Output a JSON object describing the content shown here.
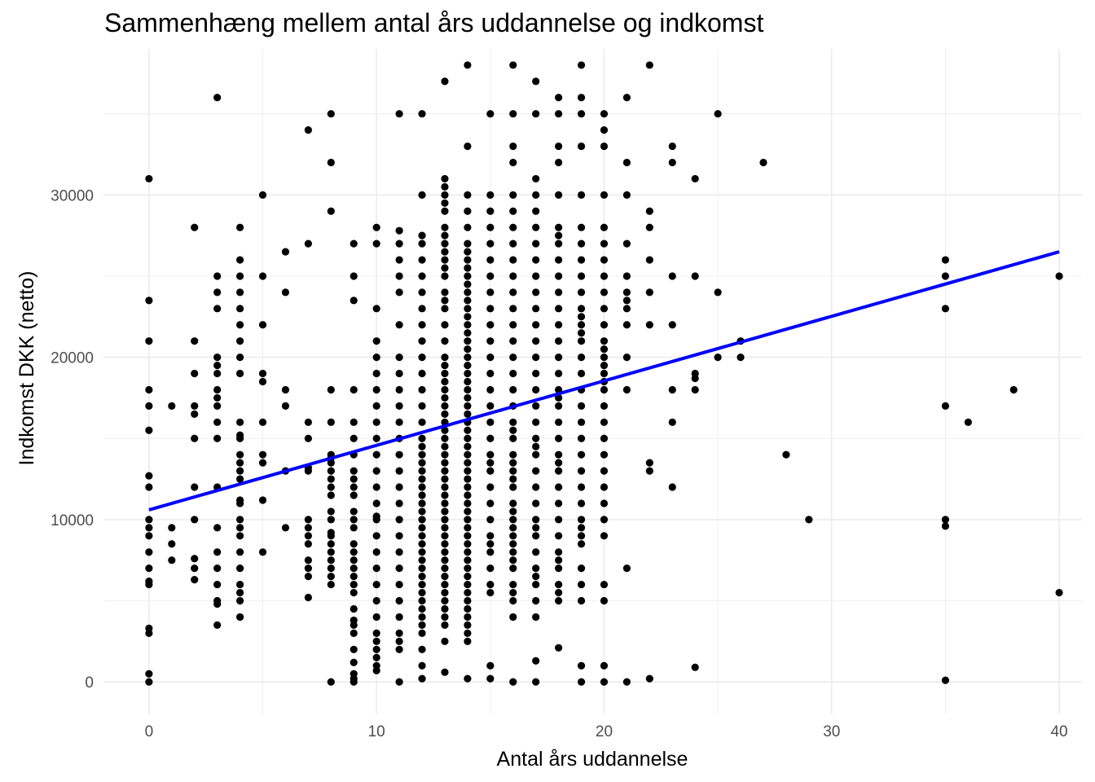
{
  "chart_data": {
    "type": "scatter",
    "title": "Sammenhæng mellem antal års uddannelse og indkomst",
    "xlabel": "Antal års uddannelse",
    "ylabel": "Indkomst DKK (netto)",
    "xlim": [
      -2,
      41
    ],
    "ylim": [
      -2000,
      39000
    ],
    "xticks": [
      0,
      10,
      20,
      30,
      40
    ],
    "xtick_labels": [
      "0",
      "10",
      "20",
      "30",
      "40"
    ],
    "yticks": [
      0,
      10000,
      20000,
      30000
    ],
    "ytick_labels": [
      "0",
      "10000",
      "20000",
      "30000"
    ],
    "grid": true,
    "legend": "none",
    "colors": {
      "points": "#000000",
      "trend": "#0000ff",
      "grid": "#ebebeb",
      "tick_text": "#4d4d4d"
    },
    "trend_line": {
      "x": [
        0,
        40
      ],
      "y": [
        10600,
        26500
      ]
    },
    "points_by_x": [
      {
        "x": 0,
        "y": [
          31000,
          23500,
          21000,
          18000,
          17000,
          15500,
          12700,
          12000,
          10000,
          9500,
          9000,
          8000,
          7000,
          6200,
          6000,
          3300,
          3000,
          500,
          0
        ]
      },
      {
        "x": 1,
        "y": [
          17000,
          9500,
          8500,
          7500
        ]
      },
      {
        "x": 2,
        "y": [
          28000,
          21000,
          19000,
          17000,
          16500,
          15000,
          12000,
          10000,
          7600,
          7000,
          6300
        ]
      },
      {
        "x": 3,
        "y": [
          36000,
          25000,
          24000,
          23000,
          20000,
          19500,
          19000,
          18000,
          17500,
          17000,
          16000,
          15000,
          12000,
          9500,
          8000,
          7000,
          6000,
          5000,
          4800,
          3500
        ]
      },
      {
        "x": 4,
        "y": [
          28000,
          26000,
          25000,
          24000,
          23000,
          22000,
          21000,
          20000,
          19000,
          16000,
          15200,
          15000,
          14000,
          13500,
          13000,
          12500,
          11200,
          11000,
          10000,
          9500,
          9000,
          8000,
          7000,
          6000,
          5500,
          5000,
          4000
        ]
      },
      {
        "x": 5,
        "y": [
          30000,
          25000,
          22000,
          19000,
          18500,
          16000,
          14000,
          13500,
          11200,
          8000
        ]
      },
      {
        "x": 6,
        "y": [
          26500,
          24000,
          18000,
          17000,
          13000,
          9500
        ]
      },
      {
        "x": 7,
        "y": [
          34000,
          27000,
          16000,
          15000,
          13200,
          13000,
          10000,
          9500,
          9000,
          8500,
          7500,
          7000,
          6500,
          5200
        ]
      },
      {
        "x": 8,
        "y": [
          35000,
          32000,
          29000,
          18000,
          16000,
          14000,
          13800,
          13500,
          13000,
          12500,
          12000,
          11500,
          10500,
          10000,
          9200,
          9000,
          8500,
          8000,
          7500,
          7000,
          6500,
          6000,
          0
        ]
      },
      {
        "x": 9,
        "y": [
          27000,
          25000,
          23500,
          18000,
          16000,
          15000,
          14000,
          13000,
          12500,
          12000,
          11500,
          10500,
          10000,
          9500,
          8500,
          8000,
          7500,
          7000,
          6500,
          6000,
          5500,
          4500,
          3800,
          3500,
          3000,
          2000,
          1200,
          500,
          200,
          0
        ]
      },
      {
        "x": 10,
        "y": [
          28000,
          27000,
          23000,
          21000,
          20000,
          19000,
          18000,
          17000,
          16000,
          15000,
          14000,
          13000,
          12000,
          11000,
          10200,
          10000,
          9000,
          8000,
          7000,
          6000,
          5000,
          4000,
          3000,
          2500,
          2000,
          1500,
          1000,
          700
        ]
      },
      {
        "x": 11,
        "y": [
          35000,
          27800,
          27000,
          26000,
          25000,
          24000,
          22000,
          20000,
          19000,
          18000,
          17000,
          16000,
          15000,
          14000,
          13000,
          12000,
          11000,
          10000,
          9000,
          8000,
          7000,
          6000,
          5000,
          4000,
          3000,
          2500,
          2000,
          0
        ]
      },
      {
        "x": 12,
        "y": [
          35000,
          30000,
          27500,
          27000,
          26000,
          25000,
          24000,
          23000,
          22000,
          21000,
          20000,
          19000,
          18000,
          17000,
          16000,
          15000,
          14500,
          14000,
          13500,
          13000,
          12500,
          12000,
          11500,
          11000,
          10500,
          10000,
          9500,
          9000,
          8500,
          8000,
          7500,
          7000,
          6500,
          6000,
          5500,
          5000,
          4500,
          4000,
          3500,
          3000,
          2000,
          1000,
          200
        ]
      },
      {
        "x": 13,
        "y": [
          37000,
          31000,
          30500,
          30000,
          29500,
          29000,
          28000,
          27500,
          27000,
          26500,
          26000,
          25500,
          25000,
          24000,
          23500,
          23000,
          22000,
          21000,
          20000,
          19500,
          19000,
          18500,
          18000,
          17500,
          17000,
          16500,
          16000,
          15500,
          15000,
          14500,
          14000,
          13500,
          13000,
          12500,
          12000,
          11500,
          11000,
          10500,
          10000,
          9500,
          9000,
          8500,
          8000,
          7500,
          7000,
          6500,
          6000,
          5500,
          5000,
          4500,
          4000,
          3500,
          2500,
          600
        ]
      },
      {
        "x": 14,
        "y": [
          38000,
          33000,
          30000,
          29000,
          28000,
          27000,
          26500,
          26000,
          25500,
          25000,
          24500,
          24000,
          23500,
          23000,
          22500,
          22000,
          21500,
          21000,
          20500,
          20000,
          19500,
          19000,
          18500,
          18000,
          17500,
          17000,
          16500,
          16000,
          15500,
          15000,
          14500,
          14000,
          13500,
          13000,
          12500,
          12000,
          11500,
          11000,
          10500,
          10000,
          9500,
          9000,
          8500,
          8000,
          7500,
          7000,
          6500,
          6000,
          5500,
          5000,
          4500,
          4000,
          3500,
          3000,
          2500,
          200
        ]
      },
      {
        "x": 15,
        "y": [
          35000,
          30000,
          29000,
          28000,
          27000,
          26000,
          25000,
          24000,
          23000,
          22000,
          21000,
          20000,
          19000,
          18000,
          17000,
          16000,
          15000,
          14000,
          13500,
          13000,
          12000,
          11000,
          10000,
          9000,
          8500,
          8000,
          7000,
          6000,
          5500,
          1000,
          200
        ]
      },
      {
        "x": 16,
        "y": [
          38000,
          35000,
          33000,
          32000,
          30000,
          29000,
          28000,
          27000,
          26000,
          25000,
          24000,
          23000,
          22000,
          21000,
          20000,
          19000,
          18000,
          17000,
          16000,
          15500,
          15000,
          14000,
          13500,
          13000,
          12500,
          12000,
          11000,
          10500,
          10000,
          9500,
          9000,
          8500,
          8000,
          7500,
          7000,
          6000,
          5500,
          5000,
          4000,
          0
        ]
      },
      {
        "x": 17,
        "y": [
          37000,
          35000,
          31000,
          30000,
          29000,
          28000,
          27000,
          26000,
          25000,
          24000,
          23000,
          22000,
          21000,
          20000,
          19000,
          18000,
          17000,
          16000,
          15000,
          14500,
          14000,
          13000,
          12000,
          11000,
          10000,
          9500,
          9000,
          8000,
          7000,
          6500,
          6000,
          5000,
          4000,
          1300,
          0
        ]
      },
      {
        "x": 18,
        "y": [
          36000,
          35000,
          33000,
          32000,
          30000,
          28000,
          27500,
          27000,
          26000,
          25000,
          24000,
          23000,
          22000,
          21000,
          20000,
          19000,
          18000,
          17500,
          17000,
          16000,
          15000,
          14000,
          13500,
          13000,
          12000,
          11000,
          10000,
          9000,
          8000,
          7500,
          7000,
          6000,
          5500,
          5000,
          2100
        ]
      },
      {
        "x": 19,
        "y": [
          38000,
          36000,
          35000,
          33000,
          30000,
          28000,
          27000,
          26000,
          25000,
          24000,
          23000,
          22500,
          22000,
          21500,
          21000,
          20000,
          19000,
          18000,
          17000,
          16000,
          15000,
          14000,
          13000,
          12000,
          11000,
          10000,
          9500,
          9000,
          8500,
          7000,
          6000,
          5000,
          1000,
          0
        ]
      },
      {
        "x": 20,
        "y": [
          35000,
          34000,
          33000,
          30000,
          28000,
          27000,
          26000,
          25000,
          24000,
          23000,
          22000,
          21000,
          20500,
          20000,
          19500,
          19000,
          18500,
          18000,
          17000,
          16000,
          15000,
          14000,
          13000,
          12000,
          11000,
          10000,
          9000,
          6000,
          5000,
          1000,
          0
        ]
      },
      {
        "x": 21,
        "y": [
          36000,
          32000,
          30000,
          27000,
          25000,
          24000,
          23500,
          23000,
          22000,
          20000,
          18000,
          7000,
          0
        ]
      },
      {
        "x": 22,
        "y": [
          38000,
          29000,
          28000,
          26000,
          24000,
          22000,
          13500,
          13000,
          200
        ]
      },
      {
        "x": 23,
        "y": [
          33000,
          32000,
          25000,
          22000,
          18000,
          16000,
          12000
        ]
      },
      {
        "x": 24,
        "y": [
          31000,
          25000,
          19000,
          18700,
          18000,
          900
        ]
      },
      {
        "x": 25,
        "y": [
          35000,
          24000,
          20000
        ]
      },
      {
        "x": 26,
        "y": [
          21000,
          20000
        ]
      },
      {
        "x": 27,
        "y": [
          32000
        ]
      },
      {
        "x": 28,
        "y": [
          14000
        ]
      },
      {
        "x": 29,
        "y": [
          10000
        ]
      },
      {
        "x": 35,
        "y": [
          26000,
          25000,
          23000,
          17000,
          10000,
          9600,
          100
        ]
      },
      {
        "x": 36,
        "y": [
          16000
        ]
      },
      {
        "x": 38,
        "y": [
          18000
        ]
      },
      {
        "x": 40,
        "y": [
          25000,
          5500
        ]
      }
    ]
  }
}
